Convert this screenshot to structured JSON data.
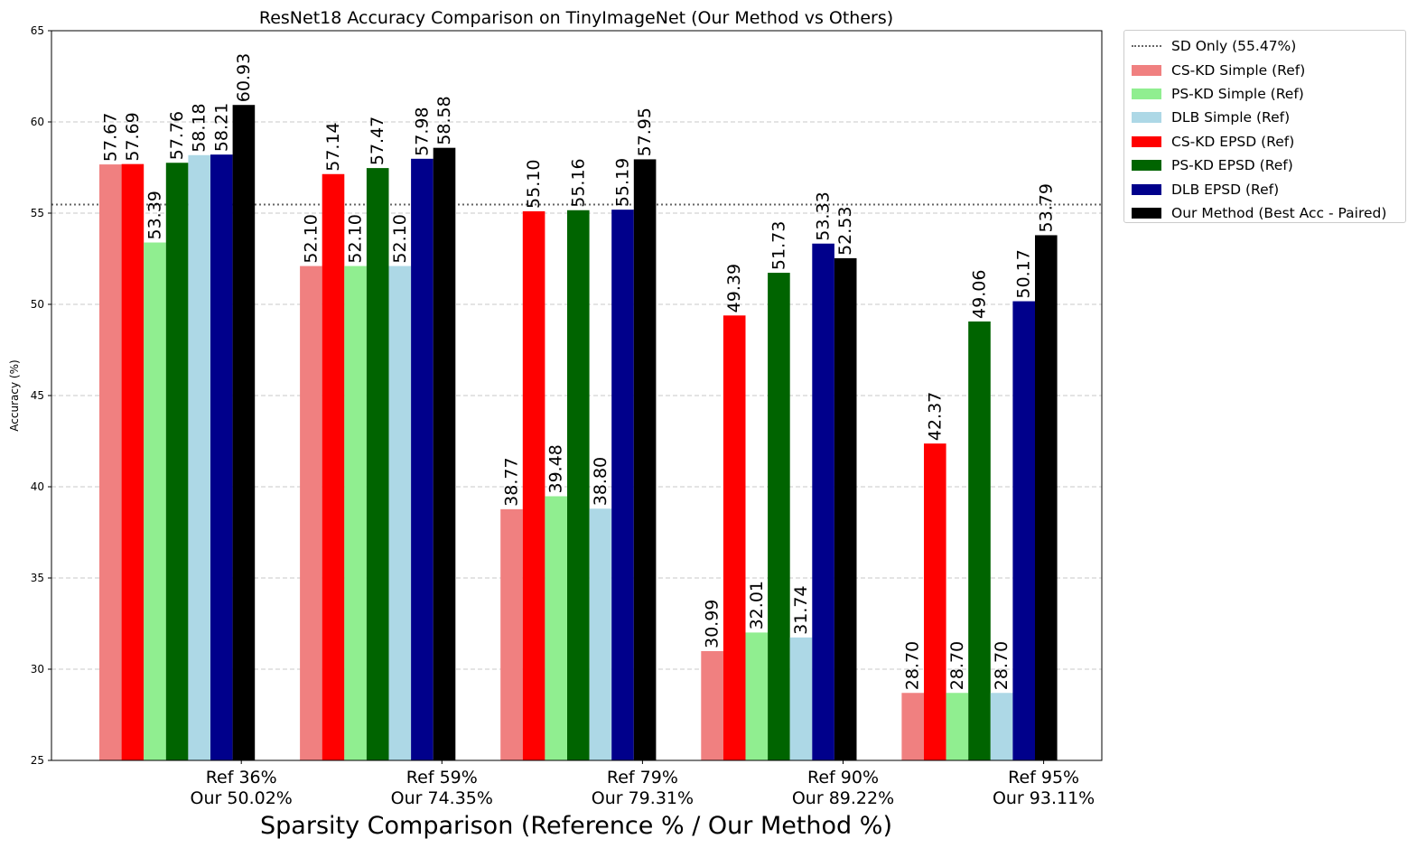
{
  "chart_data": {
    "type": "bar",
    "title": "ResNet18 Accuracy Comparison on TinyImageNet (Our Method vs Others)",
    "xlabel": "Sparsity Comparison (Reference % / Our Method %)",
    "ylabel": "Accuracy (%)",
    "ylim": [
      25,
      65
    ],
    "yticks": [
      "25",
      "30",
      "35",
      "40",
      "45",
      "50",
      "55",
      "60",
      "65"
    ],
    "grid": "horizontal dashed",
    "legend_placement": "outside right, top",
    "categories": [
      {
        "line1": "Ref 36%",
        "line2": "Our 50.02%"
      },
      {
        "line1": "Ref 59%",
        "line2": "Our 74.35%"
      },
      {
        "line1": "Ref 79%",
        "line2": "Our 79.31%"
      },
      {
        "line1": "Ref 90%",
        "line2": "Our 89.22%"
      },
      {
        "line1": "Ref 95%",
        "line2": "Our 93.11%"
      }
    ],
    "series": [
      {
        "name": "CS-KD Simple (Ref)",
        "color": "#f08080",
        "values": [
          57.67,
          52.1,
          38.77,
          30.99,
          28.7
        ],
        "labels": [
          "57.67",
          "52.10",
          "38.77",
          "30.99",
          "28.70"
        ]
      },
      {
        "name": "CS-KD EPSD (Ref)",
        "color": "#ff0000",
        "values": [
          57.69,
          57.14,
          55.1,
          49.39,
          42.37
        ],
        "labels": [
          "57.69",
          "57.14",
          "55.10",
          "49.39",
          "42.37"
        ]
      },
      {
        "name": "PS-KD Simple (Ref)",
        "color": "#90ee90",
        "values": [
          53.39,
          52.1,
          39.48,
          32.01,
          28.7
        ],
        "labels": [
          "53.39",
          "52.10",
          "39.48",
          "32.01",
          "28.70"
        ]
      },
      {
        "name": "PS-KD EPSD (Ref)",
        "color": "#006400",
        "values": [
          57.76,
          57.47,
          55.16,
          51.73,
          49.06
        ],
        "labels": [
          "57.76",
          "57.47",
          "55.16",
          "51.73",
          "49.06"
        ]
      },
      {
        "name": "DLB Simple (Ref)",
        "color": "#add8e6",
        "values": [
          58.18,
          52.1,
          38.8,
          31.74,
          28.7
        ],
        "labels": [
          "58.18",
          "52.10",
          "38.80",
          "31.74",
          "28.70"
        ]
      },
      {
        "name": "DLB EPSD (Ref)",
        "color": "#00008b",
        "values": [
          58.21,
          57.98,
          55.19,
          53.33,
          50.17
        ],
        "labels": [
          "58.21",
          "57.98",
          "55.19",
          "53.33",
          "50.17"
        ]
      },
      {
        "name": "Our Method (Best Acc - Paired)",
        "color": "#000000",
        "values": [
          60.93,
          58.58,
          57.95,
          52.53,
          53.79
        ],
        "labels": [
          "60.93",
          "58.58",
          "57.95",
          "52.53",
          "53.79"
        ]
      }
    ],
    "reference_line": {
      "name": "SD Only (55.47%)",
      "value": 55.47,
      "color": "#666666",
      "style": "dotted"
    },
    "legend_order": [
      {
        "kind": "line",
        "name": "SD Only (55.47%)",
        "color": "#666666"
      },
      {
        "kind": "bar",
        "name": "CS-KD Simple (Ref)",
        "color": "#f08080"
      },
      {
        "kind": "bar",
        "name": "PS-KD Simple (Ref)",
        "color": "#90ee90"
      },
      {
        "kind": "bar",
        "name": "DLB Simple (Ref)",
        "color": "#add8e6"
      },
      {
        "kind": "bar",
        "name": "CS-KD EPSD (Ref)",
        "color": "#ff0000"
      },
      {
        "kind": "bar",
        "name": "PS-KD EPSD (Ref)",
        "color": "#006400"
      },
      {
        "kind": "bar",
        "name": "DLB EPSD (Ref)",
        "color": "#00008b"
      },
      {
        "kind": "bar",
        "name": "Our Method (Best Acc - Paired)",
        "color": "#000000"
      }
    ]
  }
}
